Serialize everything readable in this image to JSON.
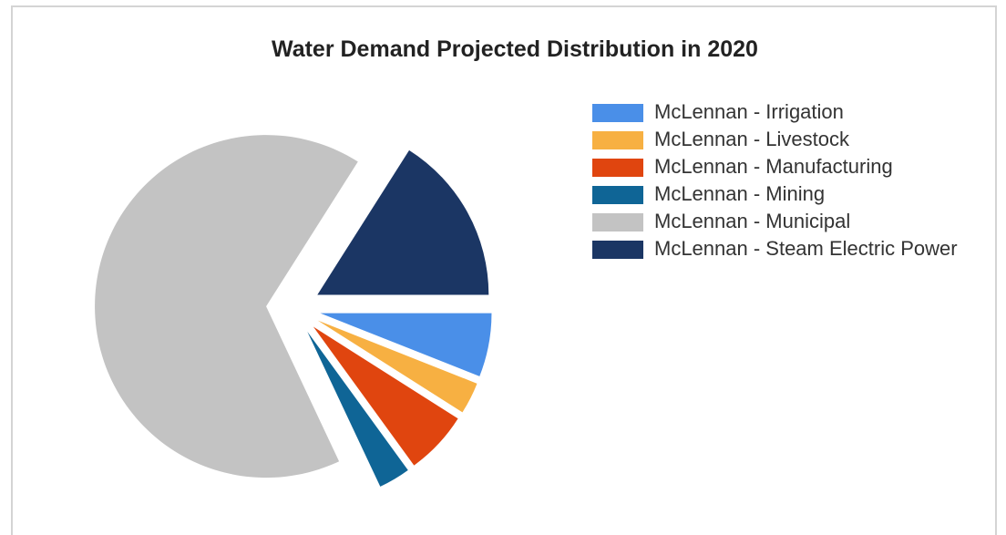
{
  "chart_data": {
    "type": "pie",
    "title": "Water Demand Projected Distribution in 2020",
    "categories": [
      "McLennan - Irrigation",
      "McLennan - Livestock",
      "McLennan - Manufacturing",
      "McLennan - Mining",
      "McLennan - Municipal",
      "McLennan - Steam Electric Power"
    ],
    "values": [
      6,
      3,
      6,
      3,
      66,
      16
    ],
    "colors": [
      "#4a8fe8",
      "#f7b042",
      "#e0450f",
      "#0f6596",
      "#c3c3c3",
      "#1b3664"
    ],
    "legend": "right"
  }
}
